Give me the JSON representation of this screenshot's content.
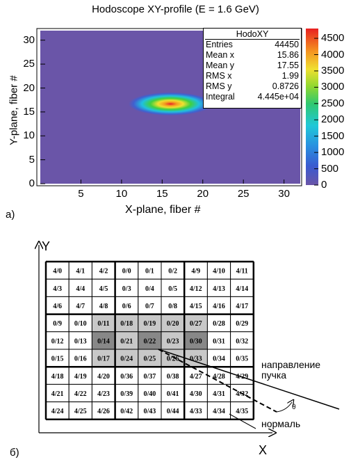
{
  "figure_a": {
    "panel_label": "а)",
    "title": "Hodoscope XY-profile (E = 1.6 GeV)",
    "xlabel": "X-plane, fiber #",
    "ylabel": "Y-plane, fiber #",
    "x_ticks": [
      "5",
      "10",
      "15",
      "20",
      "25",
      "30"
    ],
    "y_ticks": [
      "0",
      "5",
      "10",
      "15",
      "20",
      "25",
      "30"
    ],
    "colorbar_ticks": [
      "0",
      "500",
      "1000",
      "1500",
      "2000",
      "2500",
      "3000",
      "3500",
      "4000",
      "4500"
    ],
    "stats": {
      "name": "HodoXY",
      "rows": [
        {
          "label": "Entries",
          "value": "44450"
        },
        {
          "label": "Mean x",
          "value": "15.86"
        },
        {
          "label": "Mean y",
          "value": "17.55"
        },
        {
          "label": "RMS x",
          "value": "1.99"
        },
        {
          "label": "RMS y",
          "value": "0.8726"
        },
        {
          "label": "Integral",
          "value": "4.445e+04"
        }
      ]
    },
    "colors": {
      "background": "#6a55a8",
      "peak": "#e8452a"
    }
  },
  "chart_data": {
    "type": "heatmap",
    "title": "Hodoscope XY-profile (E = 1.6 GeV)",
    "xlabel": "X-plane, fiber #",
    "ylabel": "Y-plane, fiber #",
    "xlim": [
      0,
      32
    ],
    "ylim": [
      0,
      32
    ],
    "zlim": [
      0,
      4800
    ],
    "colorbar_ticks": [
      0,
      500,
      1000,
      1500,
      2000,
      2500,
      3000,
      3500,
      4000,
      4500
    ],
    "peak": {
      "x": 15.86,
      "y": 17.55,
      "value": 4700
    },
    "spread": {
      "rms_x": 1.99,
      "rms_y": 0.8726
    },
    "entries": 44450,
    "integral": 44450
  },
  "figure_b": {
    "panel_label": "б)",
    "y_axis_label": "Y",
    "x_axis_label": "X",
    "beam_label_line1": "направление",
    "beam_label_line2": "пучка",
    "normal_label": "нормаль",
    "angle_label": "θ",
    "grid": [
      [
        "4/0",
        "4/1",
        "4/2",
        "0/0",
        "0/1",
        "0/2",
        "4/9",
        "4/10",
        "4/11"
      ],
      [
        "4/3",
        "4/4",
        "4/5",
        "0/3",
        "0/4",
        "0/5",
        "4/12",
        "4/13",
        "4/14"
      ],
      [
        "4/6",
        "4/7",
        "4/8",
        "0/6",
        "0/7",
        "0/8",
        "4/15",
        "4/16",
        "4/17"
      ],
      [
        "0/9",
        "0/10",
        "0/11",
        "0/18",
        "0/19",
        "0/20",
        "0/27",
        "0/28",
        "0/29"
      ],
      [
        "0/12",
        "0/13",
        "0/14",
        "0/21",
        "0/22",
        "0/23",
        "0/30",
        "0/31",
        "0/32"
      ],
      [
        "0/15",
        "0/16",
        "0/17",
        "0/24",
        "0/25",
        "0/26",
        "0/33",
        "0/34",
        "0/35"
      ],
      [
        "4/18",
        "4/19",
        "4/20",
        "0/36",
        "0/37",
        "0/38",
        "4/27",
        "4/28",
        "4/29"
      ],
      [
        "4/21",
        "4/22",
        "4/23",
        "0/39",
        "0/40",
        "0/41",
        "4/30",
        "4/31",
        "4/32"
      ],
      [
        "4/24",
        "4/25",
        "4/26",
        "0/42",
        "0/43",
        "0/44",
        "4/33",
        "4/34",
        "4/35"
      ]
    ],
    "shading": [
      [
        0,
        0,
        0,
        0,
        0,
        0,
        0,
        0,
        0
      ],
      [
        0,
        0,
        0,
        0,
        0,
        0,
        0,
        0,
        0
      ],
      [
        0,
        0,
        0,
        0,
        0,
        0,
        0,
        0,
        0
      ],
      [
        0,
        0,
        1,
        1,
        1,
        1,
        1,
        0,
        0
      ],
      [
        0,
        0,
        2,
        1,
        2,
        1,
        2,
        0,
        0
      ],
      [
        0,
        0,
        1,
        1,
        1,
        1,
        1,
        0,
        0
      ],
      [
        0,
        0,
        0,
        0,
        0,
        0,
        0,
        0,
        0
      ],
      [
        0,
        0,
        0,
        0,
        0,
        0,
        0,
        0,
        0
      ],
      [
        0,
        0,
        0,
        0,
        0,
        0,
        0,
        0,
        0
      ]
    ],
    "shade_colors": [
      "#ffffff",
      "#c8c8c8",
      "#888888"
    ]
  }
}
